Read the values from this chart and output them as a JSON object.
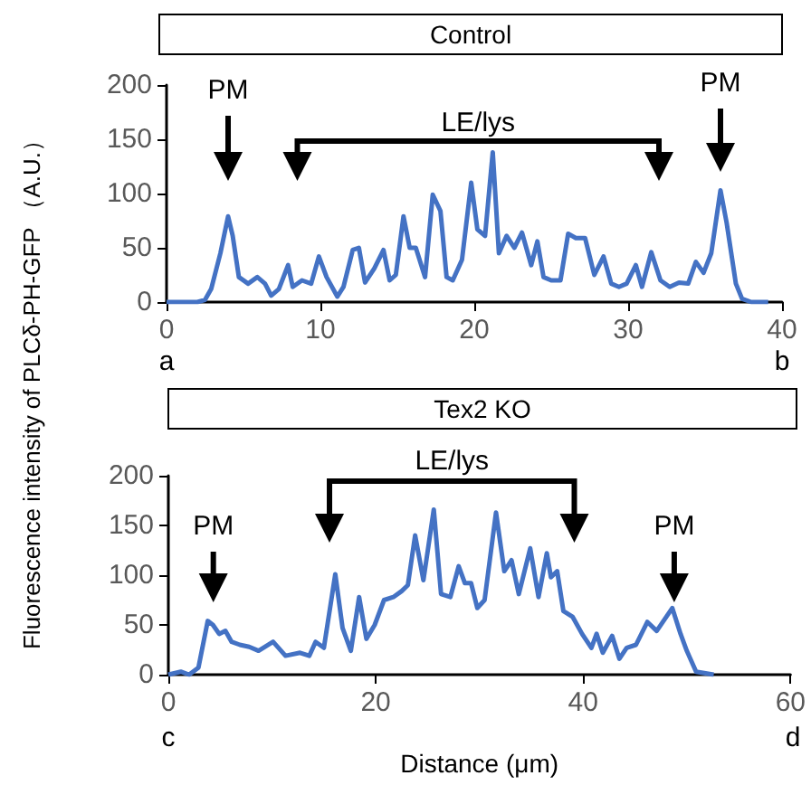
{
  "chart_data": [
    {
      "type": "line",
      "title": "Control",
      "ylabel": "Fluorescence intensity of PLCδ-PH-GFP （A.U.）",
      "color": "#4472c4",
      "marker": "none",
      "xlim": [
        0,
        40
      ],
      "xticks": [
        0,
        10,
        20,
        30,
        40
      ],
      "ylim": [
        0,
        200
      ],
      "yticks": [
        0,
        50,
        100,
        150,
        200
      ],
      "x": [
        0,
        1,
        2,
        2.5,
        2.9,
        3.5,
        4.0,
        4.3,
        4.7,
        5.3,
        5.9,
        6.4,
        6.8,
        7.3,
        7.9,
        8.2,
        8.8,
        9.4,
        9.9,
        10.4,
        11.1,
        11.5,
        12.1,
        12.5,
        12.9,
        13.5,
        14.1,
        14.5,
        14.9,
        15.4,
        15.8,
        16.2,
        16.8,
        17.3,
        17.8,
        18.2,
        18.6,
        19.2,
        19.8,
        20.2,
        20.7,
        21.2,
        21.6,
        22.1,
        22.6,
        23.1,
        23.7,
        24.1,
        24.5,
        25.0,
        25.6,
        26.1,
        26.6,
        27.2,
        27.8,
        28.4,
        28.9,
        29.4,
        29.9,
        30.5,
        30.9,
        31.5,
        32.1,
        32.7,
        33.3,
        33.9,
        34.4,
        34.9,
        35.4,
        36.0,
        36.4,
        37.0,
        37.4,
        38.0,
        39.1
      ],
      "values": [
        0,
        0,
        0,
        2,
        12,
        45,
        79,
        61,
        23,
        17,
        23,
        17,
        6,
        12,
        34,
        14,
        20,
        17,
        42,
        23,
        5,
        14,
        48,
        50,
        18,
        31,
        48,
        20,
        25,
        79,
        50,
        50,
        23,
        99,
        84,
        23,
        20,
        39,
        110,
        67,
        61,
        138,
        45,
        61,
        50,
        64,
        34,
        56,
        23,
        20,
        20,
        63,
        59,
        59,
        25,
        42,
        17,
        14,
        17,
        34,
        14,
        46,
        20,
        14,
        18,
        17,
        37,
        27,
        45,
        103,
        73,
        17,
        3,
        0,
        0
      ],
      "annotations": [
        "PM",
        "PM",
        "LE/lys",
        "a",
        "b"
      ]
    },
    {
      "type": "line",
      "title": "Tex2 KO",
      "xlabel": "Distance (μm)",
      "color": "#4472c4",
      "marker": "none",
      "xlim": [
        0,
        60
      ],
      "xticks": [
        0,
        20,
        40,
        60
      ],
      "ylim": [
        0,
        200
      ],
      "yticks": [
        0,
        50,
        100,
        150,
        200
      ],
      "x": [
        0,
        1.2,
        2,
        2.9,
        3.8,
        4.3,
        4.9,
        5.5,
        6.1,
        6.9,
        7.8,
        8.7,
        10.1,
        11.3,
        12.7,
        13.6,
        14.2,
        15.0,
        16.1,
        16.8,
        17.6,
        18.4,
        19.1,
        19.9,
        20.8,
        21.7,
        22.5,
        23.1,
        23.8,
        24.6,
        25.6,
        26.3,
        27.2,
        28.0,
        28.6,
        29.2,
        29.8,
        30.5,
        31.6,
        32.4,
        33.1,
        33.8,
        34.9,
        35.7,
        36.5,
        36.9,
        37.5,
        38.1,
        39.0,
        39.9,
        40.8,
        41.3,
        41.9,
        42.8,
        43.5,
        44.2,
        45.1,
        46.2,
        47.1,
        48.6,
        49.4,
        50.0,
        50.9,
        52.6
      ],
      "values": [
        0,
        3,
        0,
        7,
        54,
        50,
        41,
        44,
        33,
        30,
        28,
        24,
        33,
        19,
        22,
        19,
        33,
        27,
        101,
        47,
        24,
        78,
        36,
        50,
        75,
        78,
        84,
        90,
        140,
        95,
        166,
        81,
        78,
        109,
        92,
        92,
        67,
        75,
        163,
        104,
        115,
        81,
        127,
        78,
        122,
        98,
        104,
        64,
        58,
        41,
        27,
        41,
        22,
        39,
        16,
        27,
        30,
        53,
        44,
        67,
        41,
        24,
        3,
        0
      ],
      "annotations": [
        "PM",
        "PM",
        "LE/lys",
        "c",
        "d"
      ]
    }
  ]
}
